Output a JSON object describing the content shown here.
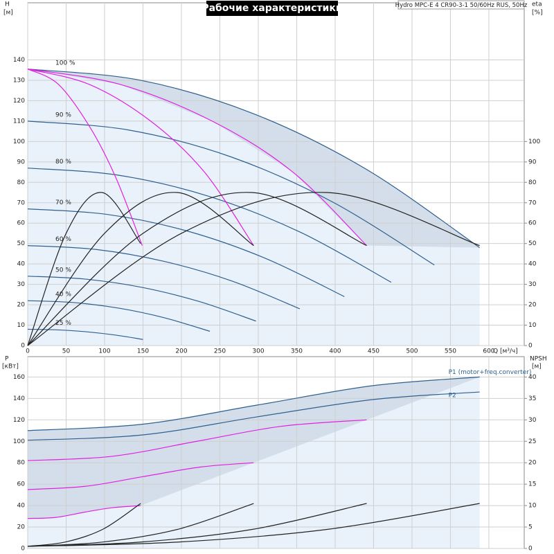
{
  "chart_data": [
    {
      "type": "line",
      "title": "Рабочие характеристики",
      "subtitle": "Hydro MPC-E 4 CR90-3-1 50/60Hz RUS, 50Hz",
      "y_label": "H",
      "y_unit": "[м]",
      "y2_label": "eta",
      "y2_unit": "[%]",
      "x_label": "Q [м³/ч]",
      "xlim": [
        0,
        646
      ],
      "xticks": [
        0,
        50,
        100,
        150,
        200,
        250,
        300,
        350,
        400,
        450,
        500,
        550,
        600
      ],
      "xtick_labels": true,
      "ylim": [
        0,
        168
      ],
      "yticks": [
        0,
        10,
        20,
        30,
        40,
        50,
        60,
        70,
        80,
        90,
        100,
        110,
        120,
        130,
        140
      ],
      "y2lim": [
        0,
        168
      ],
      "y2ticks": [
        0,
        10,
        20,
        30,
        40,
        50,
        60,
        70,
        80,
        90,
        100
      ],
      "grid": true,
      "area": true,
      "series": [
        {
          "name": "100 %",
          "color": "#2e5f8e",
          "x": [
            0,
            147,
            294,
            441,
            588
          ],
          "values": [
            135.5,
            130.0,
            113.6,
            86.3,
            48
          ]
        },
        {
          "name": "90 %",
          "color": "#2e5f8e",
          "x": [
            0,
            132,
            265,
            397,
            529
          ],
          "values": [
            110,
            105.6,
            92.4,
            70.3,
            39.5
          ]
        },
        {
          "name": "80 %",
          "color": "#2e5f8e",
          "x": [
            0,
            118,
            237,
            355,
            473
          ],
          "values": [
            87,
            83.5,
            73,
            55.5,
            31
          ]
        },
        {
          "name": "70 %",
          "color": "#2e5f8e",
          "x": [
            0,
            103,
            206,
            309,
            412
          ],
          "values": [
            67,
            64.3,
            56.3,
            42.8,
            24
          ]
        },
        {
          "name": "60 %",
          "color": "#2e5f8e",
          "x": [
            0,
            89,
            177,
            266,
            354
          ],
          "values": [
            49,
            47.1,
            41.3,
            31.6,
            18
          ]
        },
        {
          "name": "50 %",
          "color": "#2e5f8e",
          "x": [
            0,
            74,
            149,
            223,
            297
          ],
          "values": [
            34,
            32.6,
            28.5,
            21.6,
            12
          ]
        },
        {
          "name": "40 %",
          "color": "#2e5f8e",
          "x": [
            0,
            59,
            119,
            178,
            237
          ],
          "values": [
            22,
            21.1,
            18.3,
            13.6,
            7
          ]
        },
        {
          "name": "25 %",
          "color": "#2e5f8e",
          "x": [
            0,
            38,
            75,
            113,
            150
          ],
          "values": [
            8,
            7.7,
            6.8,
            5.2,
            3
          ]
        },
        {
          "color": "#e020e0",
          "x": [
            0,
            40,
            81,
            115,
            149
          ],
          "values": [
            135.5,
            128,
            107,
            82,
            49
          ]
        },
        {
          "color": "#e020e0",
          "x": [
            0,
            80,
            160,
            230,
            294
          ],
          "values": [
            135.5,
            128,
            110,
            85,
            49
          ]
        },
        {
          "color": "#e020e0",
          "x": [
            0,
            120,
            240,
            345,
            441
          ],
          "values": [
            135.5,
            128,
            110,
            85,
            49
          ]
        },
        {
          "color": "#222222",
          "axis": "y2",
          "x": [
            0,
            50,
            97,
            147
          ],
          "values": [
            0,
            55,
            75,
            50
          ]
        },
        {
          "color": "#222222",
          "axis": "y2",
          "x": [
            0,
            100,
            195,
            294
          ],
          "values": [
            0,
            55,
            75,
            49
          ]
        },
        {
          "color": "#222222",
          "axis": "y2",
          "x": [
            0,
            150,
            292,
            441
          ],
          "values": [
            0,
            55,
            75,
            49
          ]
        },
        {
          "color": "#222222",
          "axis": "y2",
          "x": [
            0,
            200,
            390,
            588
          ],
          "values": [
            0,
            55,
            75,
            49
          ]
        }
      ]
    },
    {
      "type": "line",
      "y_label": "P",
      "y_unit": "[кВт]",
      "y2_label": "NPSH",
      "y2_unit": "[м]",
      "xlim": [
        0,
        646
      ],
      "xticks": [
        0,
        50,
        100,
        150,
        200,
        250,
        300,
        350,
        400,
        450,
        500,
        550,
        600
      ],
      "xtick_labels": false,
      "ylim": [
        0,
        179
      ],
      "yticks": [
        0,
        20,
        40,
        60,
        80,
        100,
        120,
        140,
        160
      ],
      "y2lim": [
        0,
        44.75
      ],
      "y2ticks": [
        0,
        5,
        10,
        15,
        20,
        25,
        30,
        35,
        40
      ],
      "grid": true,
      "area": true,
      "series": [
        {
          "name": "P1 (motor+freq.converter)",
          "color": "#2e5f8e",
          "x": [
            0,
            150,
            300,
            450,
            588
          ],
          "values": [
            110,
            116,
            134,
            152,
            160
          ]
        },
        {
          "name": "P2",
          "color": "#2e5f8e",
          "x": [
            0,
            150,
            300,
            450,
            588
          ],
          "values": [
            101,
            106,
            123,
            139,
            146
          ]
        },
        {
          "color": "#e020e0",
          "x": [
            0,
            110,
            220,
            330,
            441
          ],
          "values": [
            82,
            86,
            100,
            114,
            120
          ]
        },
        {
          "color": "#e020e0",
          "x": [
            0,
            75,
            150,
            225,
            294
          ],
          "values": [
            55,
            58,
            67,
            76,
            80
          ]
        },
        {
          "color": "#e020e0",
          "x": [
            0,
            37,
            75,
            110,
            147
          ],
          "values": [
            28,
            29,
            34,
            38,
            40
          ]
        },
        {
          "color": "#222222",
          "axis": "y2",
          "x": [
            0,
            49,
            98,
            147
          ],
          "values": [
            0.5,
            1.5,
            4.5,
            10.5
          ]
        },
        {
          "color": "#222222",
          "axis": "y2",
          "x": [
            0,
            98,
            196,
            294
          ],
          "values": [
            0.5,
            1.5,
            4.5,
            10.5
          ]
        },
        {
          "color": "#222222",
          "axis": "y2",
          "x": [
            0,
            147,
            294,
            441
          ],
          "values": [
            0.5,
            1.5,
            4.5,
            10.5
          ]
        },
        {
          "color": "#222222",
          "axis": "y2",
          "x": [
            0,
            196,
            392,
            588
          ],
          "values": [
            0.5,
            1.5,
            4.5,
            10.5
          ]
        }
      ]
    }
  ]
}
